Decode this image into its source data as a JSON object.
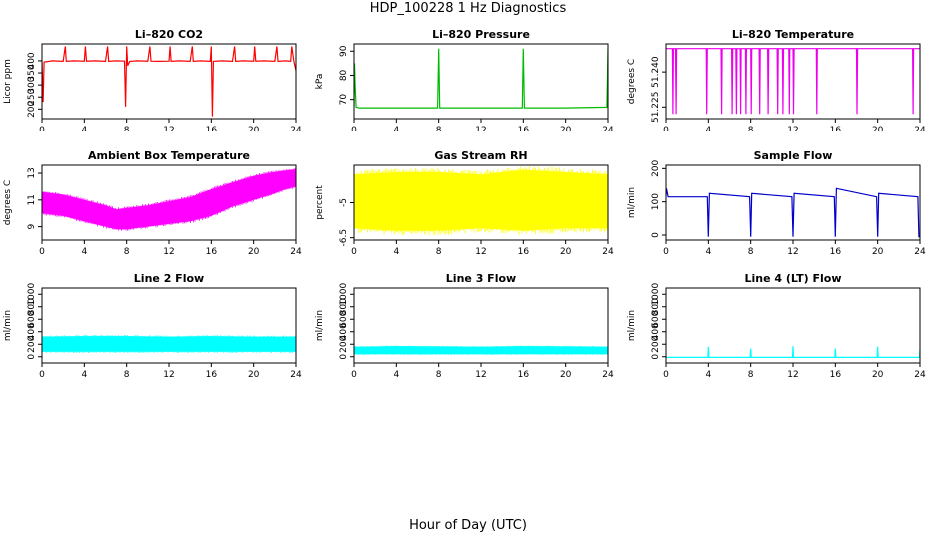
{
  "title": "HDP_100228  1 Hz Diagnostics",
  "xlabel": "Hour of Day (UTC)",
  "chart_data": [
    {
      "type": "line",
      "title": "Li–820 CO2",
      "ylabel": "Licor ppm",
      "color": "#ff0000",
      "mode": "line",
      "xlim": [
        0,
        24
      ],
      "ylim": [
        160,
        470
      ],
      "xticks": [
        0,
        4,
        8,
        12,
        16,
        20,
        24
      ],
      "yticks": [
        200,
        250,
        300,
        350,
        400
      ],
      "x": [
        0,
        0.1,
        0.2,
        1,
        2,
        2.2,
        2.3,
        3,
        4,
        4.1,
        4.2,
        5,
        6,
        6.2,
        6.3,
        7,
        7.8,
        7.9,
        8,
        8.1,
        8.3,
        9,
        10,
        10.2,
        10.3,
        11,
        12,
        12.1,
        12.2,
        13,
        14,
        14.2,
        14.3,
        15,
        15.9,
        16,
        16.1,
        16.2,
        17,
        18,
        18.2,
        18.3,
        19,
        20,
        20.1,
        20.2,
        21,
        22,
        22.2,
        22.3,
        23,
        23.5,
        23.6,
        23.8,
        24
      ],
      "y": [
        400,
        230,
        395,
        400,
        398,
        460,
        398,
        400,
        399,
        460,
        399,
        400,
        398,
        460,
        398,
        400,
        399,
        210,
        460,
        380,
        398,
        400,
        399,
        460,
        399,
        398,
        399,
        460,
        398,
        400,
        398,
        460,
        398,
        400,
        398,
        460,
        170,
        398,
        400,
        398,
        460,
        398,
        400,
        399,
        460,
        399,
        400,
        398,
        460,
        398,
        400,
        398,
        460,
        398,
        360
      ]
    },
    {
      "type": "line",
      "title": "Li–820 Pressure",
      "ylabel": "kPa",
      "color": "#00bb00",
      "mode": "line",
      "xlim": [
        0,
        24
      ],
      "ylim": [
        62,
        93
      ],
      "xticks": [
        0,
        4,
        8,
        12,
        16,
        20,
        24
      ],
      "yticks": [
        70,
        80,
        90
      ],
      "x": [
        0,
        0.05,
        0.1,
        0.2,
        0.5,
        4,
        7.9,
        8,
        8.1,
        12,
        15.9,
        16,
        16.1,
        20,
        23.9,
        24
      ],
      "y": [
        67,
        85,
        76,
        66.8,
        66.5,
        66.5,
        66.5,
        91,
        66.5,
        66.5,
        66.5,
        91,
        66.5,
        66.5,
        66.8,
        91
      ]
    },
    {
      "type": "line",
      "title": "Li–820 Temperature",
      "ylabel": "degrees C",
      "color": "#ee00ee",
      "mode": "line",
      "xlim": [
        0,
        24
      ],
      "ylim": [
        51.22,
        51.252
      ],
      "xticks": [
        0,
        4,
        8,
        12,
        16,
        20,
        24
      ],
      "yticks": [
        51.225,
        51.24
      ],
      "tickLabels": [
        "51.225",
        "51.240"
      ],
      "x": [
        0,
        0.6,
        0.65,
        0.7,
        0.9,
        0.95,
        1,
        3.8,
        3.85,
        3.9,
        5.2,
        5.25,
        5.3,
        6.2,
        6.25,
        6.3,
        6.6,
        6.65,
        6.7,
        7,
        7.05,
        7.1,
        7.5,
        7.55,
        7.6,
        8,
        8.05,
        8.1,
        8.8,
        8.85,
        8.9,
        9.6,
        9.65,
        9.7,
        10.5,
        10.55,
        10.6,
        11,
        11.05,
        11.1,
        11.6,
        11.65,
        11.7,
        12,
        12.05,
        12.1,
        14.2,
        14.25,
        14.3,
        18,
        18.05,
        18.1,
        23.3,
        23.35,
        23.4,
        24
      ],
      "y": [
        51.25,
        51.25,
        51.222,
        51.25,
        51.25,
        51.222,
        51.25,
        51.25,
        51.222,
        51.25,
        51.25,
        51.222,
        51.25,
        51.25,
        51.222,
        51.25,
        51.25,
        51.222,
        51.25,
        51.25,
        51.222,
        51.25,
        51.25,
        51.222,
        51.25,
        51.25,
        51.222,
        51.25,
        51.25,
        51.222,
        51.25,
        51.25,
        51.222,
        51.25,
        51.25,
        51.222,
        51.25,
        51.25,
        51.222,
        51.25,
        51.25,
        51.222,
        51.25,
        51.25,
        51.222,
        51.25,
        51.25,
        51.222,
        51.25,
        51.25,
        51.222,
        51.25,
        51.25,
        51.222,
        51.25,
        51.25
      ]
    },
    {
      "type": "area",
      "title": "Ambient Box Temperature",
      "ylabel": "degrees C",
      "color": "#ff00ff",
      "mode": "band",
      "xlim": [
        0,
        24
      ],
      "ylim": [
        8,
        13.6
      ],
      "xticks": [
        0,
        4,
        8,
        12,
        16,
        20,
        24
      ],
      "yticks": [
        9,
        11,
        13
      ],
      "x": [
        0,
        2,
        4,
        6,
        7,
        8,
        10,
        12,
        14,
        16,
        18,
        20,
        22,
        23,
        24
      ],
      "low": [
        10.0,
        9.8,
        9.4,
        9.0,
        8.8,
        8.8,
        9.0,
        9.2,
        9.4,
        9.8,
        10.5,
        11.0,
        11.5,
        11.8,
        12.0
      ],
      "high": [
        11.6,
        11.4,
        11.0,
        10.6,
        10.3,
        10.4,
        10.6,
        10.9,
        11.2,
        11.8,
        12.3,
        12.8,
        13.1,
        13.2,
        13.3
      ]
    },
    {
      "type": "area",
      "title": "Gas Stream RH",
      "ylabel": "percent",
      "color": "#ffff00",
      "mode": "band",
      "xlim": [
        0,
        24
      ],
      "ylim": [
        -6.6,
        -3.4
      ],
      "xticks": [
        0,
        4,
        8,
        12,
        16,
        20,
        24
      ],
      "yticks": [
        -6.5,
        -5.0
      ],
      "x": [
        0,
        4,
        8,
        12,
        16,
        20,
        24
      ],
      "low": [
        -6.1,
        -6.2,
        -6.2,
        -6.1,
        -6.2,
        -6.1,
        -6.1
      ],
      "high": [
        -3.8,
        -3.7,
        -3.7,
        -3.8,
        -3.6,
        -3.7,
        -3.8
      ]
    },
    {
      "type": "line",
      "title": "Sample Flow",
      "ylabel": "ml/min",
      "color": "#0000cc",
      "mode": "line",
      "xlim": [
        0,
        24
      ],
      "ylim": [
        -15,
        210
      ],
      "xticks": [
        0,
        4,
        8,
        12,
        16,
        20,
        24
      ],
      "yticks": [
        0,
        100,
        200
      ],
      "x": [
        0,
        0.05,
        0.2,
        3.9,
        4,
        4.1,
        7.9,
        8,
        8.1,
        11.9,
        12,
        12.1,
        15.9,
        16,
        16.1,
        19.9,
        20,
        20.1,
        23.8,
        23.9,
        24
      ],
      "y": [
        118,
        140,
        115,
        115,
        -5,
        125,
        115,
        -5,
        125,
        115,
        -5,
        125,
        115,
        -5,
        140,
        115,
        -5,
        125,
        115,
        -5,
        -5
      ]
    },
    {
      "type": "area",
      "title": "Line 2 Flow",
      "ylabel": "ml/min",
      "color": "#00ffff",
      "mode": "band",
      "xlim": [
        0,
        24
      ],
      "ylim": [
        -100,
        1100
      ],
      "xticks": [
        0,
        4,
        8,
        12,
        16,
        20,
        24
      ],
      "yticks": [
        0,
        200,
        400,
        600,
        800,
        1000
      ],
      "x": [
        0,
        4,
        8,
        12,
        16,
        20,
        24
      ],
      "low": [
        80,
        80,
        80,
        80,
        80,
        80,
        80
      ],
      "high": [
        320,
        330,
        330,
        320,
        330,
        320,
        320
      ]
    },
    {
      "type": "area",
      "title": "Line 3 Flow",
      "ylabel": "ml/min",
      "color": "#00ffff",
      "mode": "band",
      "xlim": [
        0,
        24
      ],
      "ylim": [
        -100,
        1100
      ],
      "xticks": [
        0,
        4,
        8,
        12,
        16,
        20,
        24
      ],
      "yticks": [
        0,
        200,
        400,
        600,
        800,
        1000
      ],
      "x": [
        0,
        4,
        8,
        12,
        16,
        20,
        24
      ],
      "low": [
        40,
        40,
        40,
        40,
        40,
        40,
        40
      ],
      "high": [
        160,
        170,
        165,
        160,
        170,
        165,
        160
      ]
    },
    {
      "type": "line",
      "title": "Line 4 (LT) Flow",
      "ylabel": "ml/min",
      "color": "#00ffff",
      "mode": "line",
      "xlim": [
        0,
        24
      ],
      "ylim": [
        -100,
        1100
      ],
      "xticks": [
        0,
        4,
        8,
        12,
        16,
        20,
        24
      ],
      "yticks": [
        0,
        200,
        400,
        600,
        800,
        1000
      ],
      "x": [
        0,
        3.95,
        4,
        4.05,
        7.95,
        8,
        8.05,
        11.95,
        12,
        12.05,
        15.95,
        16,
        16.05,
        19.95,
        20,
        20.05,
        23.95,
        24
      ],
      "y": [
        -10,
        -10,
        160,
        -10,
        -10,
        130,
        -10,
        -10,
        170,
        -10,
        -10,
        130,
        -10,
        -10,
        160,
        -10,
        -10,
        120
      ]
    }
  ]
}
